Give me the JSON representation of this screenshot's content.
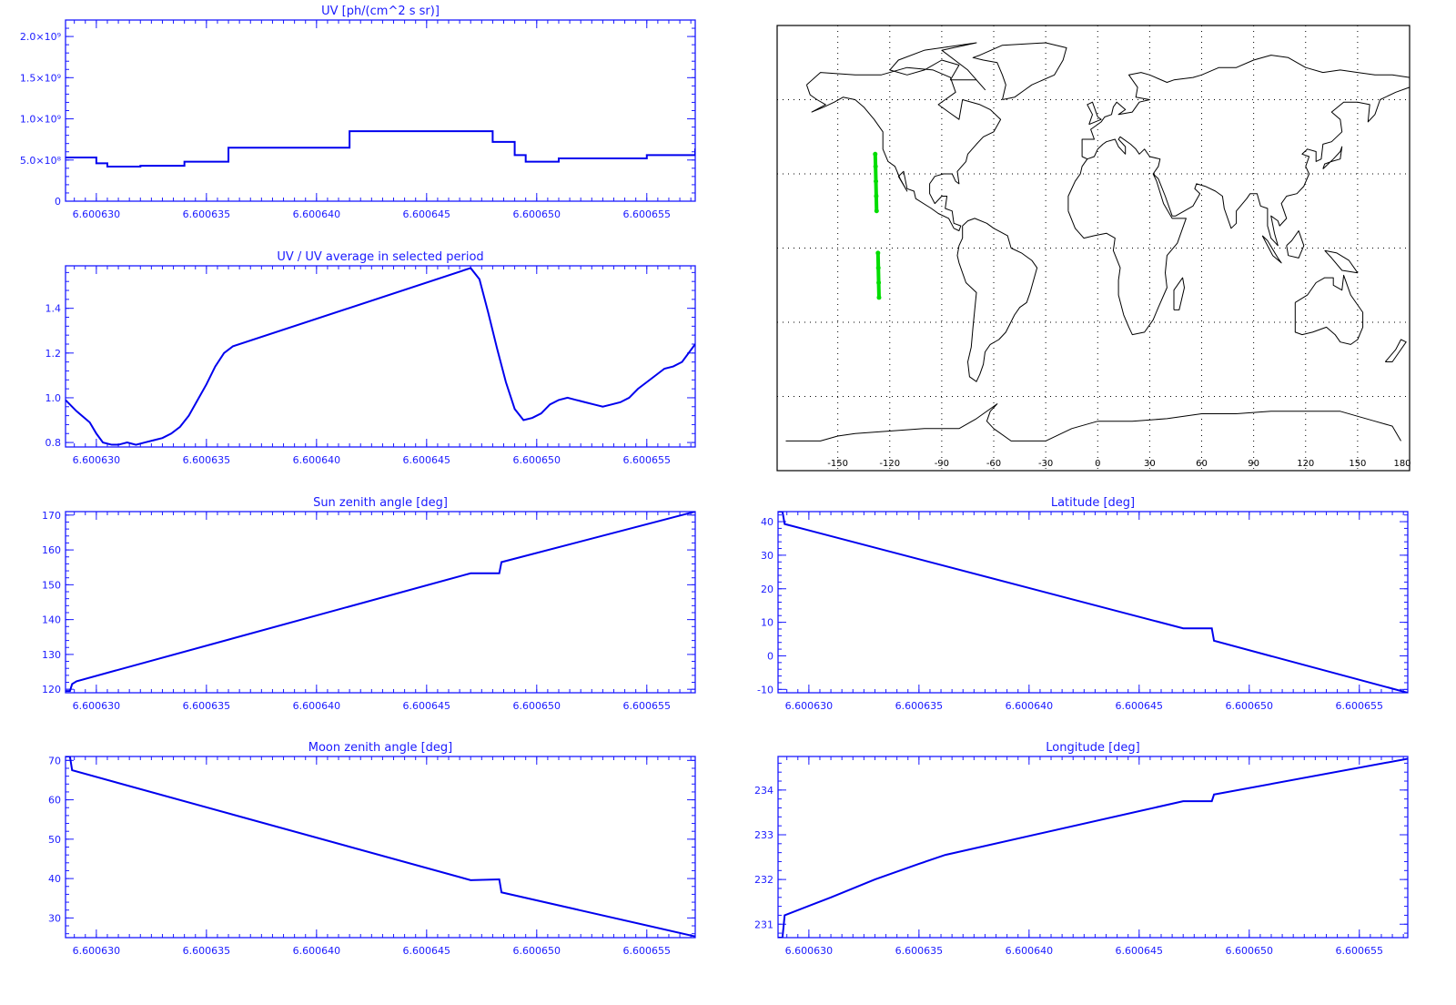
{
  "colors": {
    "axis": "#1a1aff",
    "line": "#0000ee",
    "map_frame": "#000000",
    "coast": "#000000",
    "track": "#00dd00"
  },
  "chart_data": [
    {
      "id": "uv",
      "type": "line",
      "title": "UV [ph/(cm^2 s sr)]",
      "xlabel": "",
      "ylabel": "",
      "xlim": [
        6.6006286,
        6.6006572
      ],
      "ylim": [
        0,
        2200000000.0
      ],
      "xticks": [
        6.60063,
        6.600635,
        6.60064,
        6.600645,
        6.60065,
        6.600655
      ],
      "xtick_labels": [
        "6.600630",
        "6.600635",
        "6.600640",
        "6.600645",
        "6.600650",
        "6.600655"
      ],
      "yticks": [
        0,
        500000000.0,
        1000000000.0,
        1500000000.0,
        2000000000.0
      ],
      "ytick_labels": [
        "0",
        "5.0×10⁸",
        "1.0×10⁹",
        "1.5×10⁹",
        "2.0×10⁹"
      ],
      "step": true,
      "x": [
        6.6006286,
        6.60063,
        6.6006305,
        6.600632,
        6.600634,
        6.600636,
        6.6006415,
        6.6006415,
        6.600647,
        6.600648,
        6.600649,
        6.6006495,
        6.600651,
        6.600653,
        6.600655,
        6.6006572
      ],
      "y": [
        530000000.0,
        460000000.0,
        420000000.0,
        430000000.0,
        480000000.0,
        650000000.0,
        650000000.0,
        850000000.0,
        850000000.0,
        720000000.0,
        560000000.0,
        480000000.0,
        520000000.0,
        520000000.0,
        560000000.0,
        640000000.0
      ]
    },
    {
      "id": "uv_ratio",
      "type": "line",
      "title": "UV / UV average in selected period",
      "xlabel": "",
      "ylabel": "",
      "xlim": [
        6.6006286,
        6.6006572
      ],
      "ylim": [
        0.78,
        1.59
      ],
      "xticks": [
        6.60063,
        6.600635,
        6.60064,
        6.600645,
        6.60065,
        6.600655
      ],
      "xtick_labels": [
        "6.600630",
        "6.600635",
        "6.600640",
        "6.600645",
        "6.600650",
        "6.600655"
      ],
      "yticks": [
        0.8,
        1.0,
        1.2,
        1.4
      ],
      "ytick_labels": [
        "0.8",
        "1.0",
        "1.2",
        "1.4"
      ],
      "x": [
        6.6006286,
        6.6006291,
        6.6006297,
        6.60063,
        6.6006303,
        6.6006307,
        6.600631,
        6.6006314,
        6.6006318,
        6.6006322,
        6.6006326,
        6.600633,
        6.6006334,
        6.6006338,
        6.6006342,
        6.6006346,
        6.600635,
        6.6006354,
        6.6006358,
        6.6006362,
        6.600647,
        6.6006474,
        6.6006478,
        6.6006482,
        6.6006486,
        6.600649,
        6.6006494,
        6.6006498,
        6.6006502,
        6.6006506,
        6.600651,
        6.6006514,
        6.6006518,
        6.6006522,
        6.6006526,
        6.600653,
        6.6006534,
        6.6006538,
        6.6006542,
        6.6006546,
        6.600655,
        6.6006554,
        6.6006558,
        6.6006562,
        6.6006566,
        6.6006572
      ],
      "y": [
        0.99,
        0.94,
        0.89,
        0.84,
        0.8,
        0.79,
        0.79,
        0.8,
        0.79,
        0.8,
        0.81,
        0.82,
        0.84,
        0.87,
        0.92,
        0.99,
        1.06,
        1.14,
        1.2,
        1.23,
        1.58,
        1.53,
        1.38,
        1.22,
        1.07,
        0.95,
        0.9,
        0.91,
        0.93,
        0.97,
        0.99,
        1.0,
        0.99,
        0.98,
        0.97,
        0.96,
        0.97,
        0.98,
        1.0,
        1.04,
        1.07,
        1.1,
        1.13,
        1.14,
        1.16,
        1.24
      ]
    },
    {
      "id": "sza",
      "type": "line",
      "title": "Sun zenith angle [deg]",
      "xlabel": "",
      "ylabel": "",
      "xlim": [
        6.6006286,
        6.6006572
      ],
      "ylim": [
        119,
        171
      ],
      "xticks": [
        6.60063,
        6.600635,
        6.60064,
        6.600645,
        6.60065,
        6.600655
      ],
      "xtick_labels": [
        "6.600630",
        "6.600635",
        "6.600640",
        "6.600645",
        "6.600650",
        "6.600655"
      ],
      "yticks": [
        120,
        130,
        140,
        150,
        160,
        170
      ],
      "ytick_labels": [
        "120",
        "130",
        "140",
        "150",
        "160",
        "170"
      ],
      "x": [
        6.6006286,
        6.6006288,
        6.6006289,
        6.6006291,
        6.600647,
        6.6006483,
        6.6006484,
        6.6006572
      ],
      "y": [
        119.5,
        119.5,
        121.5,
        122.3,
        153.3,
        153.3,
        156.5,
        171.0
      ]
    },
    {
      "id": "mza",
      "type": "line",
      "title": "Moon zenith angle [deg]",
      "xlabel": "",
      "ylabel": "",
      "xlim": [
        6.6006286,
        6.6006572
      ],
      "ylim": [
        25,
        71
      ],
      "xticks": [
        6.60063,
        6.600635,
        6.60064,
        6.600645,
        6.60065,
        6.600655
      ],
      "xtick_labels": [
        "6.600630",
        "6.600635",
        "6.600640",
        "6.600645",
        "6.600650",
        "6.600655"
      ],
      "yticks": [
        30,
        40,
        50,
        60,
        70
      ],
      "ytick_labels": [
        "30",
        "40",
        "50",
        "60",
        "70"
      ],
      "x": [
        6.6006286,
        6.6006288,
        6.6006289,
        6.600647,
        6.6006483,
        6.6006484,
        6.6006572
      ],
      "y": [
        71,
        71,
        67.5,
        39.6,
        39.8,
        36.5,
        25.3
      ]
    },
    {
      "id": "lat",
      "type": "line",
      "title": "Latitude [deg]",
      "xlabel": "",
      "ylabel": "",
      "xlim": [
        6.6006286,
        6.6006572
      ],
      "ylim": [
        -11,
        43
      ],
      "xticks": [
        6.60063,
        6.600635,
        6.60064,
        6.600645,
        6.60065,
        6.600655
      ],
      "xtick_labels": [
        "6.600630",
        "6.600635",
        "6.600640",
        "6.600645",
        "6.600650",
        "6.600655"
      ],
      "yticks": [
        -10,
        0,
        10,
        20,
        30,
        40
      ],
      "ytick_labels": [
        "-10",
        "0",
        "10",
        "20",
        "30",
        "40"
      ],
      "x": [
        6.6006286,
        6.6006288,
        6.6006289,
        6.600647,
        6.6006483,
        6.6006484,
        6.6006572
      ],
      "y": [
        43,
        43,
        39.3,
        8.2,
        8.2,
        4.5,
        -11
      ]
    },
    {
      "id": "lon",
      "type": "line",
      "title": "Longitude [deg]",
      "xlabel": "",
      "ylabel": "",
      "xlim": [
        6.6006286,
        6.6006572
      ],
      "ylim": [
        230.7,
        234.75
      ],
      "xticks": [
        6.60063,
        6.600635,
        6.60064,
        6.600645,
        6.60065,
        6.600655
      ],
      "xtick_labels": [
        "6.600630",
        "6.600635",
        "6.600640",
        "6.600645",
        "6.600650",
        "6.600655"
      ],
      "yticks": [
        231,
        232,
        233,
        234
      ],
      "ytick_labels": [
        "231",
        "232",
        "233",
        "234"
      ],
      "x": [
        6.6006286,
        6.6006288,
        6.6006289,
        6.600631,
        6.600633,
        6.600635,
        6.6006362,
        6.600647,
        6.6006483,
        6.6006484,
        6.6006572
      ],
      "y": [
        230.7,
        230.7,
        231.2,
        231.6,
        232.0,
        232.35,
        232.55,
        233.75,
        233.75,
        233.9,
        234.7
      ]
    },
    {
      "id": "map",
      "type": "scatter",
      "title": "",
      "xlabel": "",
      "ylabel": "",
      "xlim": [
        -185,
        180
      ],
      "ylim": [
        -90,
        90
      ],
      "xticks": [
        -150,
        -120,
        -90,
        -60,
        -30,
        0,
        30,
        60,
        90,
        120,
        150,
        180
      ],
      "xtick_labels": [
        "-150",
        "-120",
        "-90",
        "-60",
        "-30",
        "0",
        "30",
        "60",
        "90",
        "120",
        "150",
        "180"
      ],
      "grid": true,
      "series": [
        {
          "x": [
            -128.4,
            -128.2,
            -128.0,
            -127.8,
            -127.6
          ],
          "y": [
            38,
            33,
            27,
            21,
            15
          ]
        },
        {
          "x": [
            -126.8,
            -126.6,
            -126.4,
            -126.2
          ],
          "y": [
            -2,
            -8,
            -14,
            -20
          ]
        }
      ]
    }
  ]
}
